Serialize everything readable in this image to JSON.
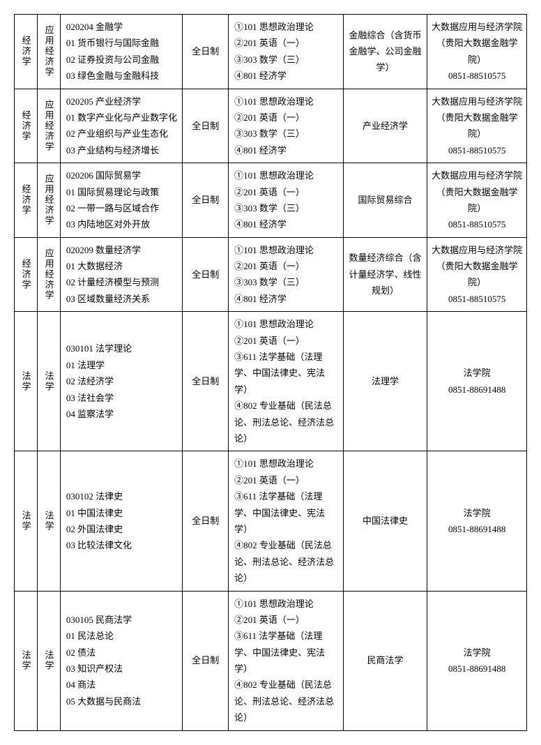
{
  "table": {
    "columns": {
      "category1_width": 30,
      "category2_width": 30,
      "major_width": 160,
      "mode_width": 60,
      "subjects_width": 150,
      "exam_width": 110,
      "contact_width": 130
    },
    "styling": {
      "border_color": "#000000",
      "background_color": "#ffffff",
      "text_color": "#000000",
      "font_size": 13,
      "line_height": 1.8,
      "cell_padding": "6px 4px"
    },
    "rows": [
      {
        "category1": "经济学",
        "category2": "应用经济学",
        "major": "020204 金融学\n01 货币银行与国际金融\n02 证券投资与公司金融\n03 绿色金融与金融科技",
        "mode": "全日制",
        "subjects": "①101 思想政治理论\n②201 英语（一）\n③303 数学（三）\n④801 经济学",
        "exam": "金融综合（含货币金融学、公司金融学）",
        "contact": "大数据应用与经济学院（贵阳大数据金融学院）\n0851-88510575"
      },
      {
        "category1": "经济学",
        "category2": "应用经济学",
        "major": "020205 产业经济学\n01 数字产业化与产业数字化\n02 产业组织与产业生态化\n03 产业结构与经济增长",
        "mode": "全日制",
        "subjects": "①101 思想政治理论\n②201 英语（一）\n③303 数学（三）\n④801 经济学",
        "exam": "产业经济学",
        "contact": "大数据应用与经济学院（贵阳大数据金融学院）\n0851-88510575"
      },
      {
        "category1": "经济学",
        "category2": "应用经济学",
        "major": "020206 国际贸易学\n01 国际贸易理论与政策\n02 一带一路与区域合作\n03 内陆地区对外开放",
        "mode": "全日制",
        "subjects": "①101 思想政治理论\n②201 英语（一）\n③303 数学（三）\n④801 经济学",
        "exam": "国际贸易综合",
        "contact": "大数据应用与经济学院（贵阳大数据金融学院）\n0851-88510575"
      },
      {
        "category1": "经济学",
        "category2": "应用经济学",
        "major": "020209 数量经济学\n01 大数据经济\n02 计量经济模型与预测\n03 区域数量经济关系",
        "mode": "全日制",
        "subjects": "①101 思想政治理论\n②201 英语（一）\n③303 数学（三）\n④801 经济学",
        "exam": "数量经济综合（含计量经济学、线性规划）",
        "contact": "大数据应用与经济学院（贵阳大数据金融学院）\n0851-88510575"
      },
      {
        "category1": "法学",
        "category2": "法学",
        "major": "030101 法学理论\n01 法理学\n02 法经济学\n03 法社会学\n04 监察法学",
        "mode": "全日制",
        "subjects": "①101 思想政治理论\n②201 英语（一）\n③611 法学基础（法理学、中国法律史、宪法学）\n④802 专业基础（民法总论、刑法总论、经济法总论）",
        "exam": "法理学",
        "contact": "法学院\n0851-88691488"
      },
      {
        "category1": "法学",
        "category2": "法学",
        "major": "030102 法律史\n01 中国法律史\n02 外国法律史\n03 比较法律文化",
        "mode": "全日制",
        "subjects": "①101 思想政治理论\n②201 英语（一）\n③611 法学基础（法理学、中国法律史、宪法学）\n④802 专业基础（民法总论、刑法总论、经济法总论）",
        "exam": "中国法律史",
        "contact": "法学院\n0851-88691488"
      },
      {
        "category1": "法学",
        "category2": "法学",
        "major": "030105 民商法学\n01 民法总论\n02 债法\n03 知识产权法\n04 商法\n05 大数据与民商法",
        "mode": "全日制",
        "subjects": "①101 思想政治理论\n②201 英语（一）\n③611 法学基础（法理学、中国法律史、宪法学）\n④802 专业基础（民法总论、刑法总论、经济法总论）",
        "exam": "民商法学",
        "contact": "法学院\n0851-88691488"
      }
    ]
  }
}
